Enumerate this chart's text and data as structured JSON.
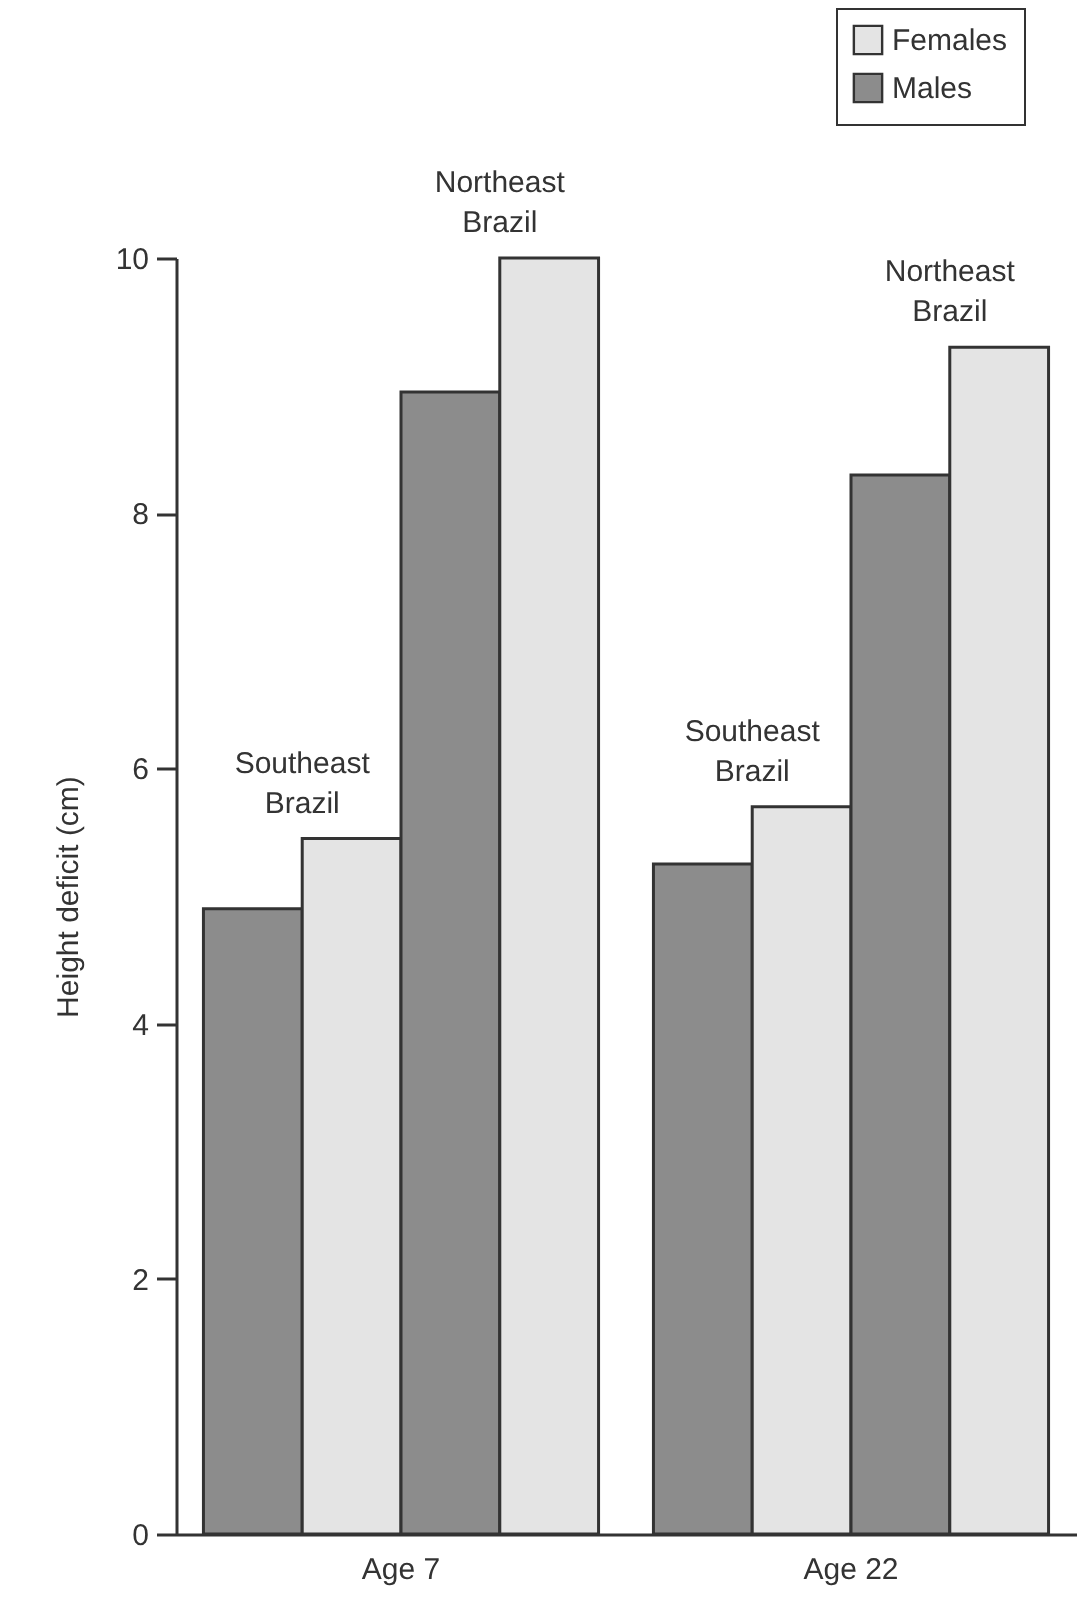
{
  "chart_data": {
    "type": "bar",
    "ylabel": "Height deficit (cm)",
    "categories": [
      "Age 7",
      "Age 22"
    ],
    "series": [
      {
        "name": "Males",
        "color": "#8c8c8c",
        "values": [
          4.9,
          5.25
        ]
      },
      {
        "name": "Females",
        "color": "#e4e4e4",
        "values": [
          5.45,
          5.7
        ]
      },
      {
        "color": "#8c8c8c",
        "values": [
          8.95,
          8.3
        ]
      },
      {
        "color": "#e4e4e4",
        "values": [
          10,
          9.3
        ]
      }
    ],
    "ylim": [
      0,
      10
    ],
    "yticks": [
      0,
      2,
      4,
      6,
      8,
      10
    ],
    "annotations": [
      "Southeast Brazil",
      "Northeast Brazil",
      "Southeast Brazil",
      "Northeast Brazil"
    ],
    "legend": "top right",
    "grid": false
  }
}
